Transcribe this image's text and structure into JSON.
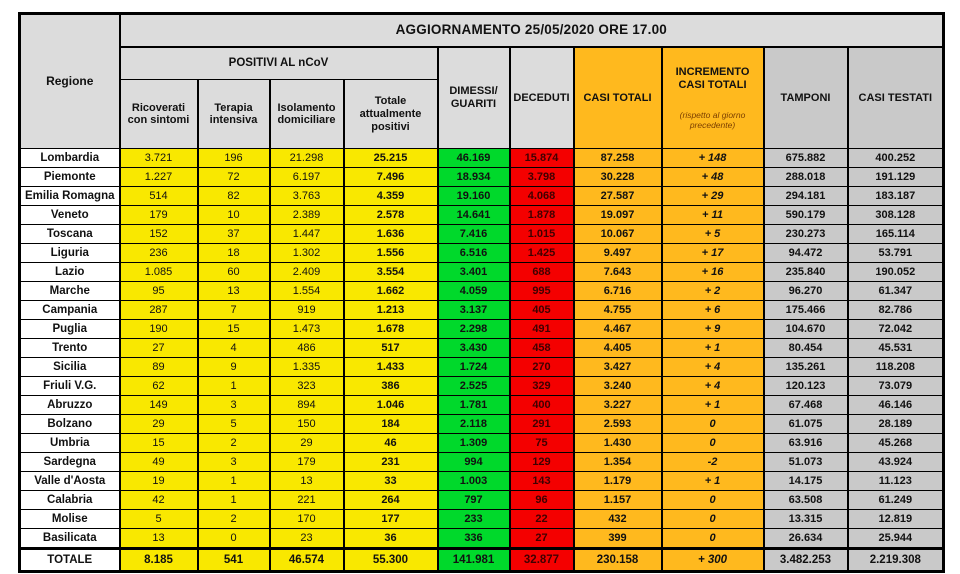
{
  "banner": "AGGIORNAMENTO 25/05/2020 ORE 17.00",
  "headers": {
    "regione": "Regione",
    "positivi_group": "POSITIVI AL nCoV",
    "sub": [
      "Ricoverati\ncon sintomi",
      "Terapia\nintensiva",
      "Isolamento\ndomiciliare",
      "Totale\nattualmente\npositivi"
    ],
    "dimessi": "DIMESSI/\nGUARITI",
    "deceduti": "DECEDUTI",
    "casi_totali": "CASI TOTALI",
    "incremento_title": "INCREMENTO\nCASI  TOTALI",
    "incremento_sub": "(rispetto al giorno\nprecedente)",
    "tamponi": "TAMPONI",
    "casi_testati": "CASI TESTATI"
  },
  "colors": {
    "yellow": "#f9e800",
    "green": "#00d92b",
    "red": "#f40000",
    "orange": "#ffb91e",
    "gray_data": "#c9c9c9",
    "gray_header": "#dcdcdc",
    "border": "#000000",
    "deceduti_text": "#3f0000"
  },
  "chart_data": {
    "type": "table",
    "title": "AGGIORNAMENTO 25/05/2020 ORE 17.00",
    "columns": [
      "Regione",
      "Ricoverati con sintomi",
      "Terapia intensiva",
      "Isolamento domiciliare",
      "Totale attualmente positivi",
      "DIMESSI/GUARITI",
      "DECEDUTI",
      "CASI TOTALI",
      "INCREMENTO CASI TOTALI (rispetto al giorno precedente)",
      "TAMPONI",
      "CASI TESTATI"
    ],
    "rows": [
      [
        "Lombardia",
        "3.721",
        "196",
        "21.298",
        "25.215",
        "46.169",
        "15.874",
        "87.258",
        "+ 148",
        "675.882",
        "400.252"
      ],
      [
        "Piemonte",
        "1.227",
        "72",
        "6.197",
        "7.496",
        "18.934",
        "3.798",
        "30.228",
        "+ 48",
        "288.018",
        "191.129"
      ],
      [
        "Emilia Romagna",
        "514",
        "82",
        "3.763",
        "4.359",
        "19.160",
        "4.068",
        "27.587",
        "+ 29",
        "294.181",
        "183.187"
      ],
      [
        "Veneto",
        "179",
        "10",
        "2.389",
        "2.578",
        "14.641",
        "1.878",
        "19.097",
        "+ 11",
        "590.179",
        "308.128"
      ],
      [
        "Toscana",
        "152",
        "37",
        "1.447",
        "1.636",
        "7.416",
        "1.015",
        "10.067",
        "+ 5",
        "230.273",
        "165.114"
      ],
      [
        "Liguria",
        "236",
        "18",
        "1.302",
        "1.556",
        "6.516",
        "1.425",
        "9.497",
        "+ 17",
        "94.472",
        "53.791"
      ],
      [
        "Lazio",
        "1.085",
        "60",
        "2.409",
        "3.554",
        "3.401",
        "688",
        "7.643",
        "+ 16",
        "235.840",
        "190.052"
      ],
      [
        "Marche",
        "95",
        "13",
        "1.554",
        "1.662",
        "4.059",
        "995",
        "6.716",
        "+ 2",
        "96.270",
        "61.347"
      ],
      [
        "Campania",
        "287",
        "7",
        "919",
        "1.213",
        "3.137",
        "405",
        "4.755",
        "+ 6",
        "175.466",
        "82.786"
      ],
      [
        "Puglia",
        "190",
        "15",
        "1.473",
        "1.678",
        "2.298",
        "491",
        "4.467",
        "+ 9",
        "104.670",
        "72.042"
      ],
      [
        "Trento",
        "27",
        "4",
        "486",
        "517",
        "3.430",
        "458",
        "4.405",
        "+ 1",
        "80.454",
        "45.531"
      ],
      [
        "Sicilia",
        "89",
        "9",
        "1.335",
        "1.433",
        "1.724",
        "270",
        "3.427",
        "+ 4",
        "135.261",
        "118.208"
      ],
      [
        "Friuli V.G.",
        "62",
        "1",
        "323",
        "386",
        "2.525",
        "329",
        "3.240",
        "+ 4",
        "120.123",
        "73.079"
      ],
      [
        "Abruzzo",
        "149",
        "3",
        "894",
        "1.046",
        "1.781",
        "400",
        "3.227",
        "+ 1",
        "67.468",
        "46.146"
      ],
      [
        "Bolzano",
        "29",
        "5",
        "150",
        "184",
        "2.118",
        "291",
        "2.593",
        "0",
        "61.075",
        "28.189"
      ],
      [
        "Umbria",
        "15",
        "2",
        "29",
        "46",
        "1.309",
        "75",
        "1.430",
        "0",
        "63.916",
        "45.268"
      ],
      [
        "Sardegna",
        "49",
        "3",
        "179",
        "231",
        "994",
        "129",
        "1.354",
        "-2",
        "51.073",
        "43.924"
      ],
      [
        "Valle d'Aosta",
        "19",
        "1",
        "13",
        "33",
        "1.003",
        "143",
        "1.179",
        "+ 1",
        "14.175",
        "11.123"
      ],
      [
        "Calabria",
        "42",
        "1",
        "221",
        "264",
        "797",
        "96",
        "1.157",
        "0",
        "63.508",
        "61.249"
      ],
      [
        "Molise",
        "5",
        "2",
        "170",
        "177",
        "233",
        "22",
        "432",
        "0",
        "13.315",
        "12.819"
      ],
      [
        "Basilicata",
        "13",
        "0",
        "23",
        "36",
        "336",
        "27",
        "399",
        "0",
        "26.634",
        "25.944"
      ]
    ],
    "total_row": [
      "TOTALE",
      "8.185",
      "541",
      "46.574",
      "55.300",
      "141.981",
      "32.877",
      "230.158",
      "+ 300",
      "3.482.253",
      "2.219.308"
    ]
  }
}
